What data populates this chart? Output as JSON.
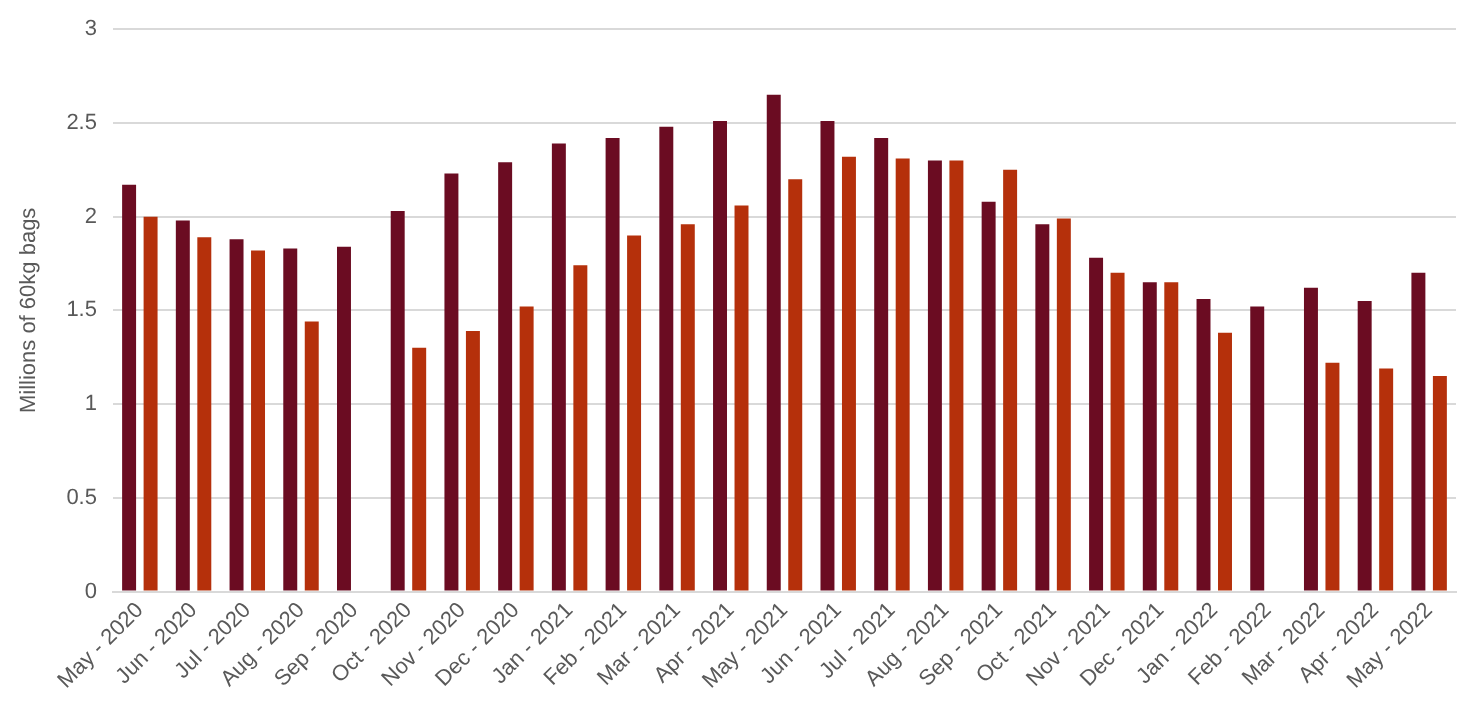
{
  "chart_data": {
    "type": "bar",
    "ylabel": "Millions of 60kg bags",
    "categories": [
      "May - 2020",
      "Jun - 2020",
      "Jul - 2020",
      "Aug - 2020",
      "Sep - 2020",
      "Oct - 2020",
      "Nov - 2020",
      "Dec - 2020",
      "Jan - 2021",
      "Feb - 2021",
      "Mar - 2021",
      "Apr - 2021",
      "May - 2021",
      "Jun - 2021",
      "Jul - 2021",
      "Aug - 2021",
      "Sep - 2021",
      "Oct - 2021",
      "Nov - 2021",
      "Dec - 2021",
      "Jan - 2022",
      "Feb - 2022",
      "Mar - 2022",
      "Apr - 2022",
      "May - 2022"
    ],
    "series": [
      {
        "color": "#6b0c22",
        "values": [
          2.17,
          1.98,
          1.88,
          1.83,
          1.84,
          2.03,
          2.23,
          2.29,
          2.39,
          2.42,
          2.48,
          2.51,
          2.65,
          2.51,
          2.42,
          2.3,
          2.08,
          1.96,
          1.78,
          1.65,
          1.56,
          1.52,
          1.62,
          1.55,
          1.7
        ]
      },
      {
        "color": "#b5300b",
        "values": [
          2.0,
          1.89,
          1.82,
          1.44,
          null,
          1.3,
          1.39,
          1.52,
          1.74,
          1.9,
          1.96,
          2.06,
          2.2,
          2.32,
          2.31,
          2.3,
          2.25,
          1.99,
          1.7,
          1.65,
          1.38,
          null,
          1.22,
          1.19,
          1.15
        ]
      }
    ],
    "ylim": [
      0,
      3
    ],
    "yticks": [
      0,
      0.5,
      1,
      1.5,
      2,
      2.5,
      3
    ],
    "grid": "y",
    "legend": false
  }
}
